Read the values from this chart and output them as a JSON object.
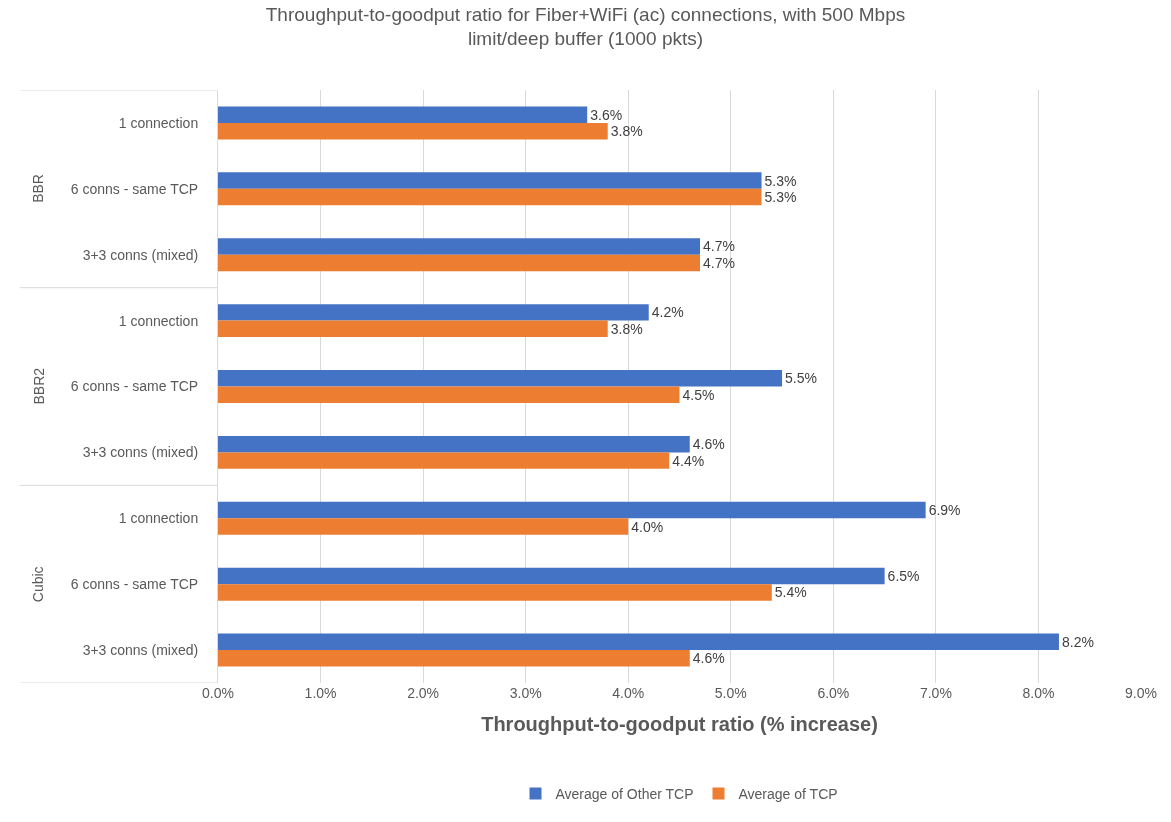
{
  "chart_data": {
    "type": "bar",
    "orientation": "horizontal",
    "title": "Throughput-to-goodput ratio for Fiber+WiFi (ac) connections, with 500 Mbps limit/deep buffer (1000 pkts)",
    "xlabel": "Throughput-to-goodput ratio (% increase)",
    "categories": [
      "1 connection",
      "6 conns - same TCP",
      "3+3 conns (mixed)",
      "1 connection",
      "6 conns - same TCP",
      "3+3 conns (mixed)",
      "1 connection",
      "6 conns - same TCP",
      "3+3 conns (mixed)"
    ],
    "annotations": [
      "BBR",
      "BBR2",
      "Cubic"
    ],
    "series": [
      {
        "name": "Average of Other TCP",
        "color": "#4472c4",
        "values": [
          3.6,
          5.3,
          4.7,
          4.2,
          5.5,
          4.6,
          6.9,
          6.5,
          8.2
        ],
        "value_labels": [
          "3.6%",
          "5.3%",
          "4.7%",
          "4.2%",
          "5.5%",
          "4.6%",
          "6.9%",
          "6.5%",
          "8.2%"
        ]
      },
      {
        "name": "Average of TCP",
        "color": "#ed7d31",
        "values": [
          3.8,
          5.3,
          4.7,
          3.8,
          4.5,
          4.4,
          4.0,
          5.4,
          4.6
        ],
        "value_labels": [
          "3.8%",
          "5.3%",
          "4.7%",
          "3.8%",
          "4.5%",
          "4.4%",
          "4.0%",
          "5.4%",
          "4.6%"
        ]
      }
    ],
    "xlim": [
      0,
      9
    ],
    "xticks": [
      {
        "value": 0,
        "label": "0.0%"
      },
      {
        "value": 1,
        "label": "1.0%"
      },
      {
        "value": 2,
        "label": "2.0%"
      },
      {
        "value": 3,
        "label": "3.0%"
      },
      {
        "value": 4,
        "label": "4.0%"
      },
      {
        "value": 5,
        "label": "5.0%"
      },
      {
        "value": 6,
        "label": "6.0%"
      },
      {
        "value": 7,
        "label": "7.0%"
      },
      {
        "value": 8,
        "label": "8.0%"
      },
      {
        "value": 9,
        "label": "9.0%"
      }
    ],
    "grid": "x",
    "legend": "bottom"
  }
}
